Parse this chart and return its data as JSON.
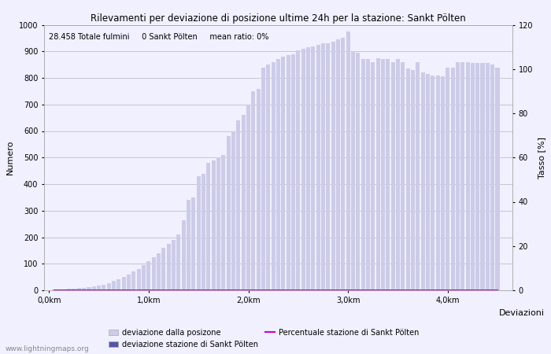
{
  "title": "Rilevamenti per deviazione di posizione ultime 24h per la stazione: Sankt Pölten",
  "info_text": "28.458 Totale fulmini     0 Sankt Pölten     mean ratio: 0%",
  "xlabel": "Deviazioni",
  "ylabel_left": "Numero",
  "ylabel_right": "Tasso [%]",
  "ylim_left": [
    0,
    1000
  ],
  "ylim_right": [
    0,
    120
  ],
  "yticks_left": [
    0,
    100,
    200,
    300,
    400,
    500,
    600,
    700,
    800,
    900,
    1000
  ],
  "yticks_right": [
    0,
    20,
    40,
    60,
    80,
    100,
    120
  ],
  "watermark": "www.lightningmaps.org",
  "bar_positions": [
    0.05,
    0.1,
    0.15,
    0.2,
    0.25,
    0.3,
    0.35,
    0.4,
    0.45,
    0.5,
    0.55,
    0.6,
    0.65,
    0.7,
    0.75,
    0.8,
    0.85,
    0.9,
    0.95,
    1.0,
    1.05,
    1.1,
    1.15,
    1.2,
    1.25,
    1.3,
    1.35,
    1.4,
    1.45,
    1.5,
    1.55,
    1.6,
    1.65,
    1.7,
    1.75,
    1.8,
    1.85,
    1.9,
    1.95,
    2.0,
    2.05,
    2.1,
    2.15,
    2.2,
    2.25,
    2.3,
    2.35,
    2.4,
    2.45,
    2.5,
    2.55,
    2.6,
    2.65,
    2.7,
    2.75,
    2.8,
    2.85,
    2.9,
    2.95,
    3.0,
    3.05,
    3.1,
    3.15,
    3.2,
    3.25,
    3.3,
    3.35,
    3.4,
    3.45,
    3.5,
    3.55,
    3.6,
    3.65,
    3.7,
    3.75,
    3.8,
    3.85,
    3.9,
    3.95,
    4.0,
    4.05,
    4.1,
    4.15,
    4.2,
    4.25,
    4.3,
    4.35,
    4.4,
    4.45,
    4.5
  ],
  "bar_heights": [
    2,
    3,
    4,
    5,
    6,
    8,
    10,
    12,
    15,
    18,
    22,
    28,
    35,
    42,
    50,
    60,
    70,
    80,
    95,
    110,
    125,
    140,
    160,
    175,
    190,
    210,
    265,
    340,
    350,
    430,
    440,
    480,
    490,
    500,
    510,
    580,
    600,
    640,
    660,
    700,
    750,
    760,
    840,
    850,
    860,
    870,
    880,
    885,
    890,
    905,
    910,
    915,
    920,
    925,
    930,
    930,
    935,
    945,
    950,
    975,
    900,
    895,
    870,
    870,
    860,
    875,
    870,
    870,
    860,
    870,
    860,
    835,
    830,
    860,
    820,
    815,
    810,
    810,
    805,
    840,
    840,
    860,
    860,
    860,
    855,
    855,
    855,
    855,
    850,
    840
  ],
  "station_bar_heights": [
    0,
    0,
    0,
    0,
    0,
    0,
    0,
    0,
    0,
    0,
    0,
    0,
    0,
    0,
    0,
    0,
    0,
    0,
    0,
    0,
    0,
    0,
    0,
    0,
    0,
    0,
    0,
    0,
    0,
    0,
    0,
    0,
    0,
    0,
    0,
    0,
    0,
    0,
    0,
    0,
    0,
    0,
    0,
    0,
    0,
    0,
    0,
    0,
    0,
    0,
    0,
    0,
    0,
    0,
    0,
    0,
    0,
    0,
    0,
    0,
    0,
    0,
    0,
    0,
    0,
    0,
    0,
    0,
    0,
    0,
    0,
    0,
    0,
    0,
    0,
    0,
    0,
    0,
    0,
    0,
    0,
    0,
    0,
    0,
    0,
    0,
    0,
    0,
    0,
    0
  ],
  "ratio_line": [
    0,
    0,
    0,
    0,
    0,
    0,
    0,
    0,
    0,
    0,
    0,
    0,
    0,
    0,
    0,
    0,
    0,
    0,
    0,
    0,
    0,
    0,
    0,
    0,
    0,
    0,
    0,
    0,
    0,
    0,
    0,
    0,
    0,
    0,
    0,
    0,
    0,
    0,
    0,
    0,
    0,
    0,
    0,
    0,
    0,
    0,
    0,
    0,
    0,
    0,
    0,
    0,
    0,
    0,
    0,
    0,
    0,
    0,
    0,
    0,
    0,
    0,
    0,
    0,
    0,
    0,
    0,
    0,
    0,
    0,
    0,
    0,
    0,
    0,
    0,
    0,
    0,
    0,
    0,
    0,
    0,
    0,
    0,
    0,
    0,
    0,
    0,
    0,
    0,
    0
  ],
  "bar_color_light": "#cccce8",
  "bar_color_dark": "#5555aa",
  "line_color": "#cc00cc",
  "bg_color": "#f0f0ff",
  "grid_color": "#c0c0c8",
  "xticks": [
    0.0,
    1.0,
    2.0,
    3.0,
    4.0
  ],
  "xtick_labels": [
    "0,0km",
    "1,0km",
    "2,0km",
    "3,0km",
    "4,0km"
  ],
  "xmin": -0.05,
  "xmax": 4.65,
  "legend_label1": "deviazione dalla posizone",
  "legend_label2": "deviazione stazione di Sankt Pölten",
  "legend_label3": "Percentuale stazione di Sankt Pölten"
}
